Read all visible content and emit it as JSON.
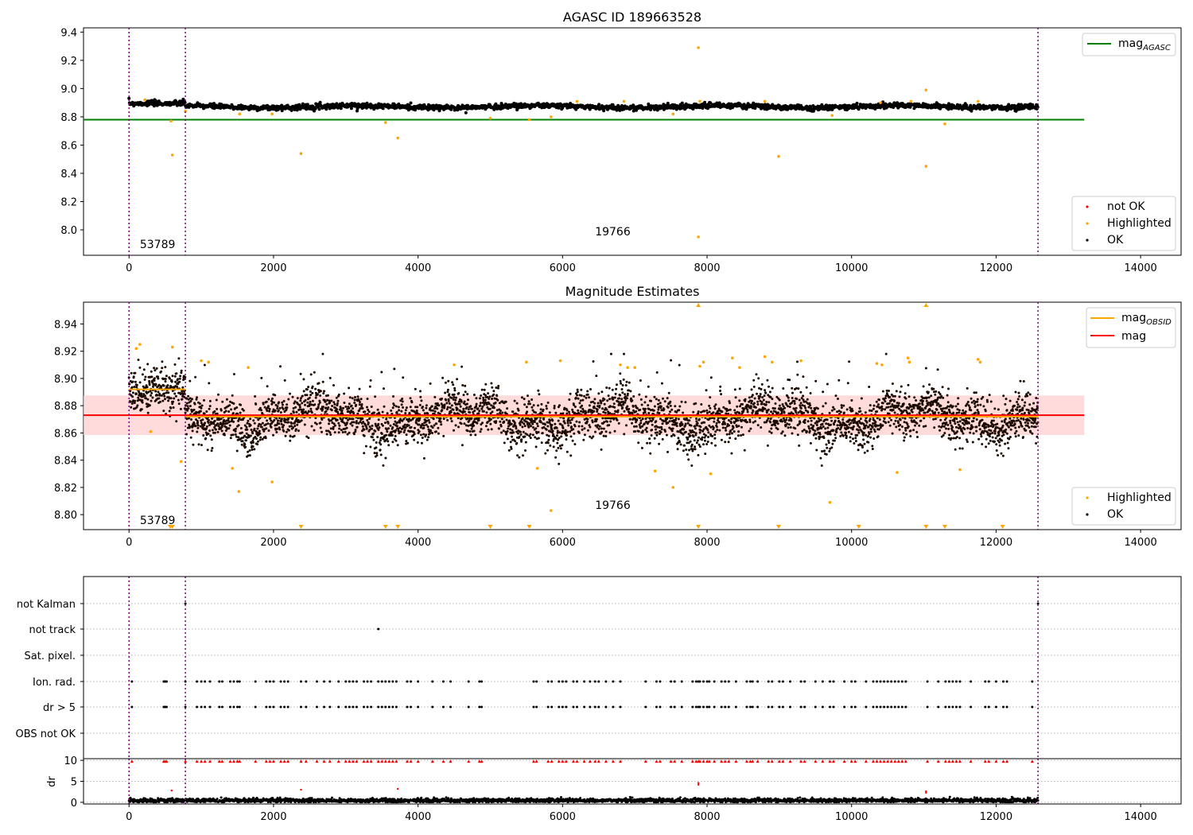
{
  "chart_data": [
    {
      "type": "scatter",
      "title": "AGASC ID 189663528",
      "xlim": [
        -630,
        14560
      ],
      "ylim": [
        7.82,
        9.43
      ],
      "x_ticks": [
        0,
        2000,
        4000,
        6000,
        8000,
        10000,
        12000,
        14000
      ],
      "y_ticks": [
        8.0,
        8.2,
        8.4,
        8.6,
        8.8,
        9.0,
        9.2,
        9.4
      ],
      "y_tick_labels": [
        "8.0",
        "8.2",
        "8.4",
        "8.6",
        "8.8",
        "9.0",
        "9.2",
        "9.4"
      ],
      "obs_boundaries": [
        0,
        780,
        12580
      ],
      "annotations": [
        {
          "text": "53789",
          "x": 150,
          "y": 7.9
        },
        {
          "text": "19766",
          "x": 6450,
          "y": 7.99
        }
      ],
      "lines": [
        {
          "name": "mag",
          "sub": "AGASC",
          "color": "#008000",
          "segments": [
            [
              -630,
              13220,
              8.78
            ]
          ]
        }
      ],
      "legend_lines_position": "top-right",
      "legend_points_position": "bottom-right",
      "series": [
        {
          "name": "not OK",
          "color": "#ff0000",
          "points": []
        },
        {
          "name": "Highlighted",
          "color": "#ffa500",
          "points": [
            [
              580,
              8.77
            ],
            [
              600,
              8.53
            ],
            [
              1530,
              8.82
            ],
            [
              1980,
              8.82
            ],
            [
              2380,
              8.54
            ],
            [
              3550,
              8.76
            ],
            [
              3720,
              8.65
            ],
            [
              5000,
              8.79
            ],
            [
              5540,
              8.78
            ],
            [
              5840,
              8.8
            ],
            [
              7530,
              8.82
            ],
            [
              7880,
              9.29
            ],
            [
              7880,
              7.95
            ],
            [
              8990,
              8.52
            ],
            [
              9730,
              8.81
            ],
            [
              11030,
              8.99
            ],
            [
              11030,
              8.45
            ],
            [
              11290,
              8.75
            ],
            [
              780,
              8.84
            ],
            [
              220,
              8.92
            ],
            [
              6200,
              8.91
            ],
            [
              6850,
              8.91
            ],
            [
              7900,
              8.91
            ],
            [
              8800,
              8.91
            ],
            [
              10400,
              8.9
            ],
            [
              10820,
              8.91
            ],
            [
              11750,
              8.91
            ]
          ]
        },
        {
          "name": "OK",
          "color": "#000000",
          "points": []
        }
      ]
    },
    {
      "type": "scatter",
      "title": "Magnitude Estimates",
      "xlim": [
        -630,
        14560
      ],
      "ylim": [
        8.789,
        8.956
      ],
      "x_ticks": [
        0,
        2000,
        4000,
        6000,
        8000,
        10000,
        12000,
        14000
      ],
      "y_ticks": [
        8.8,
        8.82,
        8.84,
        8.86,
        8.88,
        8.9,
        8.92,
        8.94
      ],
      "y_tick_labels": [
        "8.80",
        "8.82",
        "8.84",
        "8.86",
        "8.88",
        "8.90",
        "8.92",
        "8.94"
      ],
      "obs_boundaries": [
        0,
        780,
        12580
      ],
      "annotations": [
        {
          "text": "53789",
          "x": 150,
          "y": 8.796
        },
        {
          "text": "19766",
          "x": 6450,
          "y": 8.807
        }
      ],
      "band": {
        "x0": -630,
        "x1": 13220,
        "y0": 8.8585,
        "y1": 8.8875,
        "color": "#ffcccc"
      },
      "lines": [
        {
          "name": "mag",
          "sub": "OBSID",
          "color": "#ffa500",
          "segments": [
            [
              0,
              780,
              8.892
            ],
            [
              780,
              12580,
              8.872
            ]
          ]
        },
        {
          "name": "mag",
          "sub": "",
          "color": "#ff0000",
          "segments": [
            [
              -630,
              13220,
              8.873
            ]
          ]
        }
      ],
      "legend_lines_position": "top-right",
      "legend_points_position": "bottom-right",
      "series": [
        {
          "name": "Highlighted",
          "color": "#ffa500",
          "points": [
            [
              100,
              8.922
            ],
            [
              150,
              8.925
            ],
            [
              600,
              8.923
            ],
            [
              300,
              8.861
            ],
            [
              720,
              8.839
            ],
            [
              1000,
              8.913
            ],
            [
              1100,
              8.912
            ],
            [
              1650,
              8.908
            ],
            [
              1430,
              8.834
            ],
            [
              1520,
              8.817
            ],
            [
              1980,
              8.824
            ],
            [
              4500,
              8.91
            ],
            [
              5500,
              8.912
            ],
            [
              5970,
              8.913
            ],
            [
              5650,
              8.834
            ],
            [
              5840,
              8.803
            ],
            [
              6800,
              8.91
            ],
            [
              6900,
              8.908
            ],
            [
              7000,
              8.908
            ],
            [
              7280,
              8.832
            ],
            [
              7530,
              8.82
            ],
            [
              7900,
              8.909
            ],
            [
              7950,
              8.912
            ],
            [
              8050,
              8.83
            ],
            [
              8350,
              8.915
            ],
            [
              8450,
              8.908
            ],
            [
              8800,
              8.916
            ],
            [
              8900,
              8.912
            ],
            [
              9300,
              8.913
            ],
            [
              9700,
              8.809
            ],
            [
              10350,
              8.911
            ],
            [
              10420,
              8.91
            ],
            [
              10630,
              8.831
            ],
            [
              10780,
              8.915
            ],
            [
              10800,
              8.912
            ],
            [
              11500,
              8.833
            ],
            [
              11750,
              8.914
            ],
            [
              11780,
              8.912
            ]
          ]
        },
        {
          "name": "OK",
          "color": "#000000",
          "points": []
        }
      ],
      "edge_markers_bottom": [
        570,
        600,
        2380,
        3550,
        3720,
        5000,
        5540,
        7880,
        8990,
        10100,
        11030,
        11290,
        12090
      ],
      "edge_markers_top": [
        7880,
        11030
      ]
    },
    {
      "type": "scatter",
      "title": "",
      "xlim": [
        -630,
        14560
      ],
      "categories": [
        "not Kalman",
        "not track",
        "Sat. pixel.",
        "Ion. rad.",
        "dr > 5",
        "OBS not OK"
      ],
      "obs_boundaries": [
        0,
        780,
        12580
      ],
      "flag_points": {
        "not Kalman": [
          780,
          12580
        ],
        "not track": [
          3450
        ],
        "Sat. pixel.": [],
        "Ion. rad.": [
          40,
          480,
          500,
          520,
          780,
          940,
          1000,
          1050,
          1120,
          1250,
          1290,
          1400,
          1450,
          1500,
          1530,
          1750,
          1900,
          1950,
          2000,
          2100,
          2150,
          2200,
          2380,
          2450,
          2600,
          2700,
          2780,
          2900,
          3000,
          3050,
          3100,
          3150,
          3250,
          3300,
          3350,
          3450,
          3500,
          3550,
          3600,
          3650,
          3700,
          3850,
          3900,
          4000,
          4200,
          4350,
          4450,
          4700,
          4850,
          4880,
          5600,
          5640,
          5800,
          5850,
          5950,
          6000,
          6050,
          6150,
          6200,
          6300,
          6380,
          6450,
          6500,
          6600,
          6700,
          6800,
          7150,
          7300,
          7350,
          7500,
          7550,
          7650,
          7800,
          7850,
          7880,
          7900,
          7950,
          8000,
          8030,
          8100,
          8200,
          8250,
          8300,
          8400,
          8550,
          8600,
          8630,
          8700,
          8850,
          8900,
          9000,
          9050,
          9150,
          9300,
          9350,
          9500,
          9600,
          9700,
          9750,
          9900,
          10000,
          10050,
          10200,
          10300,
          10350,
          10400,
          10450,
          10500,
          10550,
          10600,
          10650,
          10700,
          10750,
          11050,
          11200,
          11300,
          11350,
          11400,
          11450,
          11500,
          11650,
          11850,
          11900,
          12000,
          12100,
          12150,
          12500
        ],
        "dr > 5": [
          40,
          480,
          500,
          520,
          780,
          940,
          1000,
          1050,
          1120,
          1250,
          1290,
          1400,
          1450,
          1500,
          1530,
          1750,
          1900,
          1950,
          2000,
          2100,
          2150,
          2200,
          2380,
          2450,
          2600,
          2700,
          2780,
          2900,
          3000,
          3050,
          3100,
          3150,
          3250,
          3300,
          3350,
          3450,
          3500,
          3550,
          3600,
          3650,
          3700,
          3850,
          3900,
          4000,
          4200,
          4350,
          4450,
          4700,
          4850,
          4880,
          5600,
          5640,
          5800,
          5850,
          5950,
          6000,
          6050,
          6150,
          6200,
          6300,
          6380,
          6450,
          6500,
          6600,
          6700,
          6800,
          7150,
          7300,
          7350,
          7500,
          7550,
          7650,
          7800,
          7850,
          7880,
          7900,
          7950,
          8000,
          8030,
          8100,
          8200,
          8250,
          8300,
          8400,
          8550,
          8600,
          8630,
          8700,
          8850,
          8900,
          9000,
          9050,
          9150,
          9300,
          9350,
          9500,
          9600,
          9700,
          9750,
          9900,
          10000,
          10050,
          10200,
          10300,
          10350,
          10400,
          10450,
          10500,
          10550,
          10600,
          10650,
          10700,
          10750,
          11050,
          11200,
          11300,
          11350,
          11400,
          11450,
          11500,
          11650,
          11850,
          11900,
          12000,
          12100,
          12150,
          12500
        ],
        "OBS not OK": []
      },
      "grid": true
    },
    {
      "type": "scatter",
      "title": "",
      "xlim": [
        -630,
        14560
      ],
      "ylim": [
        -0.4,
        10.4
      ],
      "x_ticks": [
        0,
        2000,
        4000,
        6000,
        8000,
        10000,
        12000,
        14000
      ],
      "y_ticks": [
        0,
        5,
        10
      ],
      "y_tick_labels": [
        "0",
        "5",
        "10"
      ],
      "ylabel": "dr",
      "obs_boundaries": [
        0,
        780,
        12580
      ],
      "clipped_marker_y": 9.8,
      "clipped_x": [
        40,
        480,
        500,
        520,
        780,
        940,
        1000,
        1050,
        1120,
        1250,
        1290,
        1400,
        1450,
        1500,
        1530,
        1750,
        1900,
        1950,
        2000,
        2100,
        2150,
        2200,
        2380,
        2450,
        2600,
        2700,
        2780,
        2900,
        3000,
        3050,
        3100,
        3150,
        3250,
        3300,
        3350,
        3450,
        3500,
        3550,
        3600,
        3650,
        3700,
        3850,
        3900,
        4000,
        4200,
        4350,
        4450,
        4700,
        4850,
        4880,
        5600,
        5640,
        5800,
        5850,
        5950,
        6000,
        6050,
        6150,
        6200,
        6300,
        6380,
        6450,
        6500,
        6600,
        6700,
        6800,
        7150,
        7300,
        7350,
        7500,
        7550,
        7650,
        7800,
        7850,
        7880,
        7900,
        7950,
        8000,
        8030,
        8100,
        8200,
        8250,
        8300,
        8400,
        8550,
        8600,
        8630,
        8700,
        8850,
        8900,
        9000,
        9050,
        9150,
        9300,
        9350,
        9500,
        9600,
        9700,
        9750,
        9900,
        10000,
        10050,
        10200,
        10300,
        10350,
        10400,
        10450,
        10500,
        10550,
        10600,
        10650,
        10700,
        10750,
        11050,
        11200,
        11300,
        11350,
        11400,
        11450,
        11500,
        11650,
        11850,
        11900,
        12000,
        12100,
        12150,
        12500
      ],
      "outliers_red": [
        [
          590,
          2.8
        ],
        [
          2380,
          3.0
        ],
        [
          3720,
          3.2
        ],
        [
          7880,
          4.2
        ],
        [
          7880,
          4.6
        ],
        [
          11030,
          2.6
        ],
        [
          11030,
          2.3
        ]
      ]
    }
  ]
}
